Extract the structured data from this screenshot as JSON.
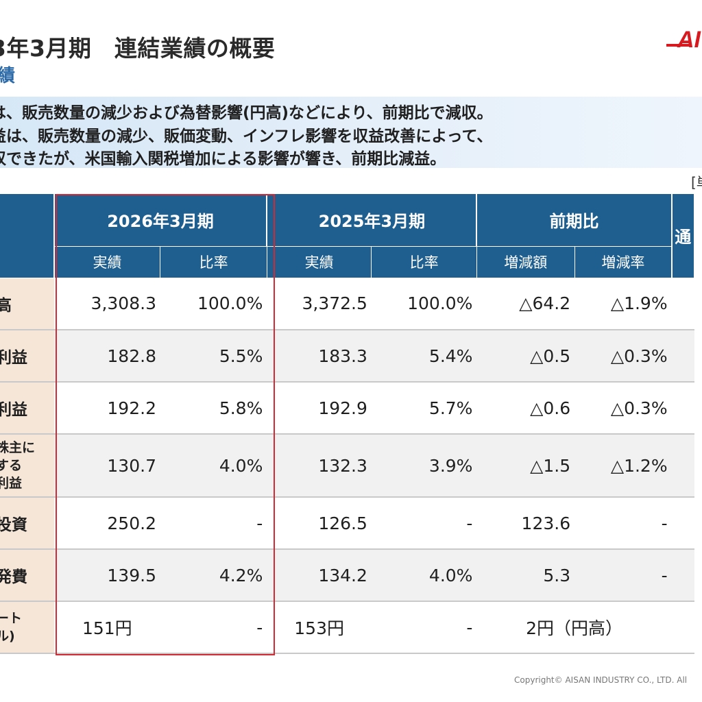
{
  "header": {
    "title": "3年3月期　連結業績の概要",
    "subtitle": "績"
  },
  "summary": {
    "line1": "は、販売数量の減少および為替影響(円高)などにより、前期比で減収。",
    "line2": "益は、販売数量の減少、販価変動、インフレ影響を収益改善によって、",
    "line3": "収できたが、米国輸入関税増加による影響が響き、前期比減益。"
  },
  "unit_label": "[単",
  "table": {
    "groups": {
      "fy2026": "2026年3月期",
      "fy2025": "2025年3月期",
      "yoy": "前期比",
      "extra": "通"
    },
    "subheaders": {
      "actual": "実績",
      "ratio": "比率",
      "change_amount": "増減額",
      "change_rate": "増減率"
    },
    "rows": [
      {
        "label": "高",
        "a2026": "3,308.3",
        "r2026": "100.0%",
        "a2025": "3,372.5",
        "r2025": "100.0%",
        "diff": "△64.2",
        "rate": "△1.9%"
      },
      {
        "label": "利益",
        "a2026": "182.8",
        "r2026": "5.5%",
        "a2025": "183.3",
        "r2025": "5.4%",
        "diff": "△0.5",
        "rate": "△0.3%"
      },
      {
        "label": "利益",
        "a2026": "192.2",
        "r2026": "5.8%",
        "a2025": "192.9",
        "r2025": "5.7%",
        "diff": "△0.6",
        "rate": "△0.3%"
      },
      {
        "label_l1": "株主に",
        "label_l2": "する",
        "label_l3": "利益",
        "a2026": "130.7",
        "r2026": "4.0%",
        "a2025": "132.3",
        "r2025": "3.9%",
        "diff": "△1.5",
        "rate": "△1.2%"
      },
      {
        "label": "投資",
        "a2026": "250.2",
        "r2026": "-",
        "a2025": "126.5",
        "r2025": "-",
        "diff": "123.6",
        "rate": "-"
      },
      {
        "label": "発費",
        "a2026": "139.5",
        "r2026": "4.2%",
        "a2025": "134.2",
        "r2025": "4.0%",
        "diff": "5.3",
        "rate": "-"
      },
      {
        "label_l1": "ート",
        "label_l2": "ル)",
        "a2026": "151円",
        "r2026": "-",
        "a2025": "153円",
        "r2025": "-",
        "diff_merged": "2円（円高）"
      }
    ]
  },
  "logo": {
    "text": "AI",
    "color": "#d71920"
  },
  "footer": {
    "copyright": "Copyright© AISAN INDUSTRY CO., LTD. All"
  }
}
